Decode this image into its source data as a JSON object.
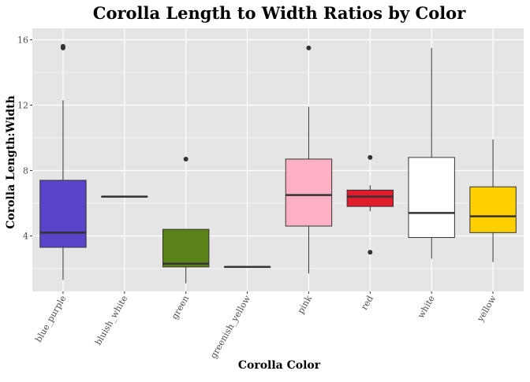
{
  "chart_data": {
    "type": "boxplot",
    "title": "Corolla Length to Width Ratios by Color",
    "xlabel": "Corolla Color",
    "ylabel": "Corolla Length:Width",
    "ylim": [
      0.6,
      16.7
    ],
    "yticks": [
      4,
      8,
      12,
      16
    ],
    "grid": true,
    "categories": [
      "blue_purple",
      "bluish_white",
      "green",
      "greenish_yellow",
      "pink",
      "red",
      "white",
      "yellow"
    ],
    "boxes": [
      {
        "category": "blue_purple",
        "fill": "#5a43c9",
        "min": 1.3,
        "q1": 3.3,
        "median": 4.2,
        "q3": 7.4,
        "max": 12.3,
        "outliers": [
          15.5,
          15.6
        ]
      },
      {
        "category": "bluish_white",
        "fill": "#ffffff",
        "min": 6.4,
        "q1": 6.4,
        "median": 6.4,
        "q3": 6.4,
        "max": 6.4,
        "outliers": []
      },
      {
        "category": "green",
        "fill": "#5a8219",
        "min": 1.1,
        "q1": 2.1,
        "median": 2.3,
        "q3": 4.4,
        "max": 4.4,
        "outliers": [
          8.7
        ]
      },
      {
        "category": "greenish_yellow",
        "fill": "#ffffff",
        "min": 2.1,
        "q1": 2.1,
        "median": 2.1,
        "q3": 2.1,
        "max": 2.1,
        "outliers": []
      },
      {
        "category": "pink",
        "fill": "#ffb0c4",
        "min": 1.7,
        "q1": 4.6,
        "median": 6.5,
        "q3": 8.7,
        "max": 11.9,
        "outliers": [
          15.5
        ]
      },
      {
        "category": "red",
        "fill": "#e01d2d",
        "min": 5.5,
        "q1": 5.8,
        "median": 6.4,
        "q3": 6.8,
        "max": 7.1,
        "outliers": [
          8.8,
          3.0
        ]
      },
      {
        "category": "white",
        "fill": "#ffffff",
        "min": 2.6,
        "q1": 3.9,
        "median": 5.4,
        "q3": 8.8,
        "max": 15.5,
        "outliers": []
      },
      {
        "category": "yellow",
        "fill": "#ffd000",
        "min": 2.4,
        "q1": 4.2,
        "median": 5.2,
        "q3": 7.0,
        "max": 9.9,
        "outliers": []
      }
    ],
    "colors": {
      "panel_background": "#e5e5e5",
      "grid_major": "#ffffff",
      "box_outline": "#333333"
    }
  }
}
